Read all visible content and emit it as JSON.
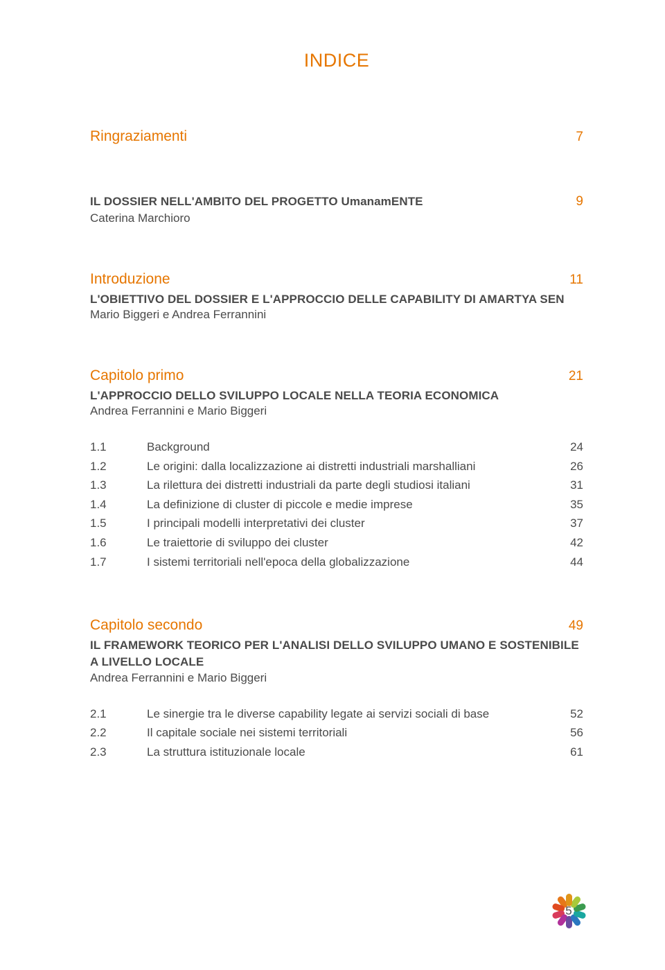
{
  "title": "INDICE",
  "pageNumber": "5",
  "flower_colors": [
    "#e0951a",
    "#a8c93a",
    "#3b9b4f",
    "#1aa7a0",
    "#2a77c0",
    "#6a4aa0",
    "#b0309a",
    "#d93b5a",
    "#e04a1f",
    "#e6781a"
  ],
  "sections": [
    {
      "items": [
        {
          "type": "row",
          "head": "Ringraziamenti",
          "page": "7"
        }
      ]
    },
    {
      "items": [
        {
          "type": "row",
          "sub": "IL DOSSIER NELL'AMBITO DEL PROGETTO UmanamENTE",
          "page": "9"
        },
        {
          "type": "byline",
          "text": "Caterina Marchioro"
        }
      ]
    },
    {
      "items": [
        {
          "type": "row",
          "head": "Introduzione",
          "page": "11"
        },
        {
          "type": "sub",
          "text": "L'OBIETTIVO DEL DOSSIER E L'APPROCCIO DELLE CAPABILITY DI AMARTYA SEN"
        },
        {
          "type": "byline",
          "text": "Mario Biggeri e Andrea Ferrannini"
        }
      ]
    },
    {
      "items": [
        {
          "type": "row",
          "head": "Capitolo primo",
          "page": "21"
        },
        {
          "type": "sub",
          "text": "L'APPROCCIO DELLO SVILUPPO LOCALE NELLA TEORIA ECONOMICA"
        },
        {
          "type": "byline",
          "text": "Andrea Ferrannini e Mario Biggeri"
        }
      ],
      "toc": [
        {
          "n": "1.1",
          "label": "Background",
          "p": "24"
        },
        {
          "n": "1.2",
          "label": "Le origini: dalla localizzazione ai distretti industriali marshalliani",
          "p": "26"
        },
        {
          "n": "1.3",
          "label": "La rilettura dei distretti industriali da parte degli studiosi italiani",
          "p": "31"
        },
        {
          "n": "1.4",
          "label": "La definizione di cluster di piccole e medie imprese",
          "p": "35"
        },
        {
          "n": "1.5",
          "label": "I principali modelli interpretativi dei cluster",
          "p": "37"
        },
        {
          "n": "1.6",
          "label": "Le traiettorie di sviluppo dei cluster",
          "p": "42"
        },
        {
          "n": "1.7",
          "label": "I sistemi territoriali nell'epoca della globalizzazione",
          "p": "44"
        }
      ]
    },
    {
      "items": [
        {
          "type": "row",
          "head": "Capitolo secondo",
          "page": "49"
        },
        {
          "type": "sub",
          "text": "IL FRAMEWORK TEORICO PER L'ANALISI DELLO SVILUPPO UMANO E SOSTENIBILE A LIVELLO LOCALE"
        },
        {
          "type": "byline",
          "text": "Andrea Ferrannini e Mario Biggeri"
        }
      ],
      "toc": [
        {
          "n": "2.1",
          "label": "Le sinergie tra le diverse capability legate ai servizi sociali di base",
          "p": "52"
        },
        {
          "n": "2.2",
          "label": "Il capitale sociale nei sistemi territoriali",
          "p": "56"
        },
        {
          "n": "2.3",
          "label": "La struttura istituzionale locale",
          "p": "61"
        }
      ]
    }
  ]
}
